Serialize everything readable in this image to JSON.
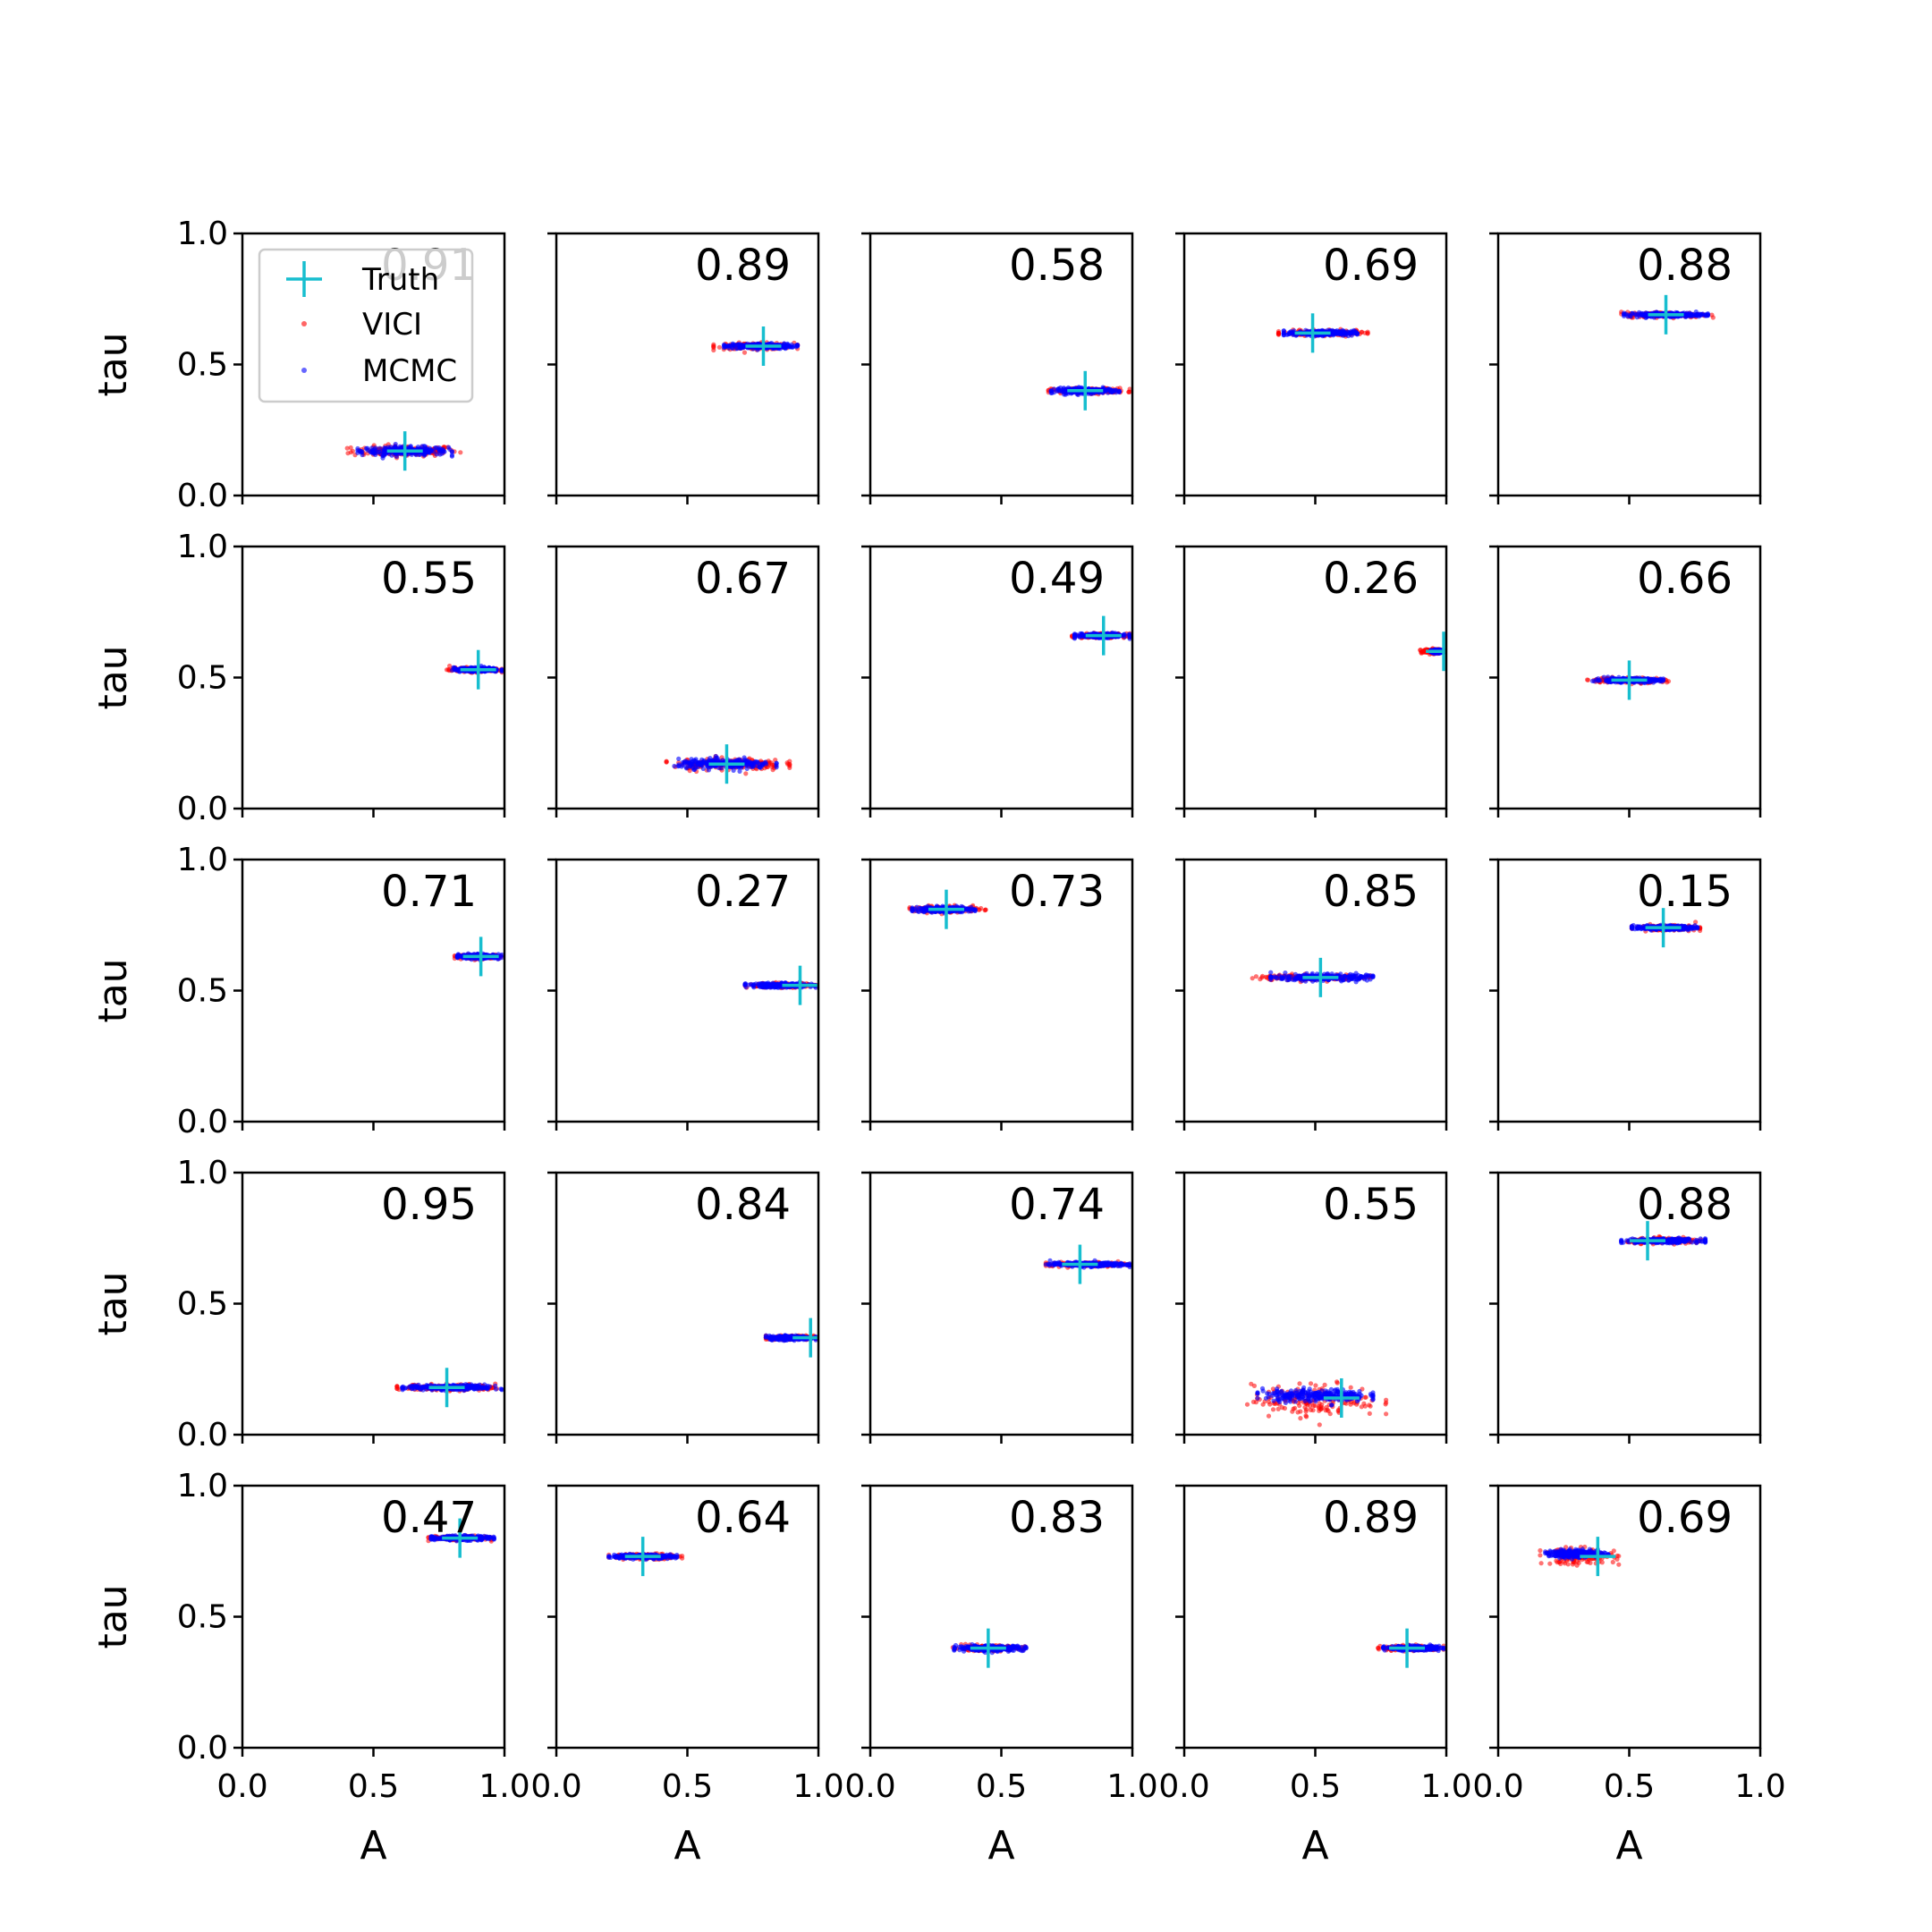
{
  "chart_data": {
    "type": "scatter",
    "grid": false,
    "legend": {
      "placement": "upper-left of first panel",
      "entries": [
        {
          "label": "Truth",
          "marker": "plus",
          "color": "#17becf"
        },
        {
          "label": "VICI",
          "marker": "dot",
          "color": "#ff0000"
        },
        {
          "label": "MCMC",
          "marker": "dot",
          "color": "#0000ff"
        }
      ]
    },
    "xlabel": "A",
    "ylabel": "tau",
    "xlim": [
      0,
      1
    ],
    "ylim": [
      0,
      1
    ],
    "x_ticks": [
      "0.0",
      "0.5",
      "1.0"
    ],
    "y_ticks": [
      "0.0",
      "0.5",
      "1.0"
    ],
    "layout": "5x5 grid",
    "panels": [
      {
        "overlap": "0.91",
        "truth": [
          0.62,
          0.17
        ],
        "vici": {
          "a": [
            0.4,
            0.84
          ],
          "tau": 0.17,
          "spread": 0.01
        },
        "mcmc": {
          "a": [
            0.44,
            0.8
          ],
          "tau": 0.17,
          "spread": 0.008
        }
      },
      {
        "overlap": "0.89",
        "truth": [
          0.79,
          0.57
        ],
        "vici": {
          "a": [
            0.6,
            0.92
          ],
          "tau": 0.57,
          "spread": 0.006
        },
        "mcmc": {
          "a": [
            0.64,
            0.92
          ],
          "tau": 0.57,
          "spread": 0.005
        }
      },
      {
        "overlap": "0.58",
        "truth": [
          0.82,
          0.4
        ],
        "vici": {
          "a": [
            0.68,
            0.99
          ],
          "tau": 0.4,
          "spread": 0.005
        },
        "mcmc": {
          "a": [
            0.69,
            0.95
          ],
          "tau": 0.4,
          "spread": 0.005
        }
      },
      {
        "overlap": "0.69",
        "truth": [
          0.49,
          0.62
        ],
        "vici": {
          "a": [
            0.36,
            0.7
          ],
          "tau": 0.62,
          "spread": 0.005
        },
        "mcmc": {
          "a": [
            0.38,
            0.66
          ],
          "tau": 0.62,
          "spread": 0.005
        }
      },
      {
        "overlap": "0.88",
        "truth": [
          0.64,
          0.69
        ],
        "vici": {
          "a": [
            0.47,
            0.82
          ],
          "tau": 0.69,
          "spread": 0.005
        },
        "mcmc": {
          "a": [
            0.48,
            0.8
          ],
          "tau": 0.69,
          "spread": 0.004
        }
      },
      {
        "overlap": "0.55",
        "truth": [
          0.9,
          0.53
        ],
        "vici": {
          "a": [
            0.78,
            0.99
          ],
          "tau": 0.53,
          "spread": 0.004
        },
        "mcmc": {
          "a": [
            0.8,
            0.99
          ],
          "tau": 0.53,
          "spread": 0.004
        }
      },
      {
        "overlap": "0.67",
        "truth": [
          0.65,
          0.17
        ],
        "vici": {
          "a": [
            0.42,
            0.89
          ],
          "tau": 0.17,
          "spread": 0.012
        },
        "mcmc": {
          "a": [
            0.45,
            0.84
          ],
          "tau": 0.17,
          "spread": 0.009
        }
      },
      {
        "overlap": "0.49",
        "truth": [
          0.89,
          0.66
        ],
        "vici": {
          "a": [
            0.77,
            0.99
          ],
          "tau": 0.66,
          "spread": 0.004
        },
        "mcmc": {
          "a": [
            0.78,
            0.99
          ],
          "tau": 0.66,
          "spread": 0.004
        }
      },
      {
        "overlap": "0.26",
        "truth": [
          0.99,
          0.6
        ],
        "vici": {
          "a": [
            0.9,
            0.99
          ],
          "tau": 0.6,
          "spread": 0.004
        },
        "mcmc": {
          "a": [
            0.94,
            0.99
          ],
          "tau": 0.6,
          "spread": 0.003
        }
      },
      {
        "overlap": "0.66",
        "truth": [
          0.5,
          0.49
        ],
        "vici": {
          "a": [
            0.34,
            0.65
          ],
          "tau": 0.49,
          "spread": 0.005
        },
        "mcmc": {
          "a": [
            0.36,
            0.63
          ],
          "tau": 0.49,
          "spread": 0.004
        }
      },
      {
        "overlap": "0.71",
        "truth": [
          0.91,
          0.63
        ],
        "vici": {
          "a": [
            0.81,
            0.99
          ],
          "tau": 0.63,
          "spread": 0.004
        },
        "mcmc": {
          "a": [
            0.82,
            0.99
          ],
          "tau": 0.63,
          "spread": 0.004
        }
      },
      {
        "overlap": "0.27",
        "truth": [
          0.93,
          0.52
        ],
        "vici": {
          "a": [
            0.72,
            0.99
          ],
          "tau": 0.52,
          "spread": 0.004
        },
        "mcmc": {
          "a": [
            0.72,
            0.99
          ],
          "tau": 0.52,
          "spread": 0.004
        }
      },
      {
        "overlap": "0.73",
        "truth": [
          0.29,
          0.81
        ],
        "vici": {
          "a": [
            0.15,
            0.44
          ],
          "tau": 0.81,
          "spread": 0.006
        },
        "mcmc": {
          "a": [
            0.16,
            0.4
          ],
          "tau": 0.81,
          "spread": 0.005
        }
      },
      {
        "overlap": "0.85",
        "truth": [
          0.52,
          0.55
        ],
        "vici": {
          "a": [
            0.25,
            0.71
          ],
          "tau": 0.55,
          "spread": 0.006
        },
        "mcmc": {
          "a": [
            0.33,
            0.72
          ],
          "tau": 0.55,
          "spread": 0.006
        }
      },
      {
        "overlap": "0.15",
        "truth": [
          0.63,
          0.74
        ],
        "vici": {
          "a": [
            0.51,
            0.77
          ],
          "tau": 0.74,
          "spread": 0.005
        },
        "mcmc": {
          "a": [
            0.51,
            0.76
          ],
          "tau": 0.74,
          "spread": 0.004
        }
      },
      {
        "overlap": "0.95",
        "truth": [
          0.78,
          0.18
        ],
        "vici": {
          "a": [
            0.59,
            0.99
          ],
          "tau": 0.18,
          "spread": 0.006
        },
        "mcmc": {
          "a": [
            0.61,
            0.99
          ],
          "tau": 0.18,
          "spread": 0.005
        }
      },
      {
        "overlap": "0.84",
        "truth": [
          0.97,
          0.37
        ],
        "vici": {
          "a": [
            0.8,
            0.99
          ],
          "tau": 0.37,
          "spread": 0.004
        },
        "mcmc": {
          "a": [
            0.8,
            0.99
          ],
          "tau": 0.37,
          "spread": 0.004
        }
      },
      {
        "overlap": "0.74",
        "truth": [
          0.8,
          0.65
        ],
        "vici": {
          "a": [
            0.67,
            0.99
          ],
          "tau": 0.65,
          "spread": 0.004
        },
        "mcmc": {
          "a": [
            0.67,
            0.99
          ],
          "tau": 0.65,
          "spread": 0.004
        }
      },
      {
        "overlap": "0.55",
        "truth": [
          0.6,
          0.14
        ],
        "vici": {
          "a": [
            0.24,
            0.77
          ],
          "tau": 0.13,
          "spread": 0.03
        },
        "mcmc": {
          "a": [
            0.28,
            0.72
          ],
          "tau": 0.15,
          "spread": 0.012
        }
      },
      {
        "overlap": "0.88",
        "truth": [
          0.57,
          0.74
        ],
        "vici": {
          "a": [
            0.48,
            0.81
          ],
          "tau": 0.74,
          "spread": 0.005
        },
        "mcmc": {
          "a": [
            0.47,
            0.79
          ],
          "tau": 0.74,
          "spread": 0.004
        }
      },
      {
        "overlap": "0.47",
        "truth": [
          0.83,
          0.8
        ],
        "vici": {
          "a": [
            0.71,
            0.95
          ],
          "tau": 0.8,
          "spread": 0.004
        },
        "mcmc": {
          "a": [
            0.72,
            0.96
          ],
          "tau": 0.8,
          "spread": 0.004
        }
      },
      {
        "overlap": "0.64",
        "truth": [
          0.33,
          0.73
        ],
        "vici": {
          "a": [
            0.2,
            0.48
          ],
          "tau": 0.73,
          "spread": 0.005
        },
        "mcmc": {
          "a": [
            0.2,
            0.46
          ],
          "tau": 0.73,
          "spread": 0.004
        }
      },
      {
        "overlap": "0.83",
        "truth": [
          0.45,
          0.38
        ],
        "vici": {
          "a": [
            0.3,
            0.59
          ],
          "tau": 0.38,
          "spread": 0.005
        },
        "mcmc": {
          "a": [
            0.32,
            0.6
          ],
          "tau": 0.38,
          "spread": 0.005
        }
      },
      {
        "overlap": "0.89",
        "truth": [
          0.85,
          0.38
        ],
        "vici": {
          "a": [
            0.74,
            0.99
          ],
          "tau": 0.38,
          "spread": 0.005
        },
        "mcmc": {
          "a": [
            0.76,
            0.99
          ],
          "tau": 0.38,
          "spread": 0.004
        }
      },
      {
        "overlap": "0.69",
        "truth": [
          0.38,
          0.73
        ],
        "vici": {
          "a": [
            0.16,
            0.46
          ],
          "tau": 0.73,
          "spread": 0.015
        },
        "mcmc": {
          "a": [
            0.18,
            0.42
          ],
          "tau": 0.74,
          "spread": 0.007
        }
      }
    ]
  }
}
